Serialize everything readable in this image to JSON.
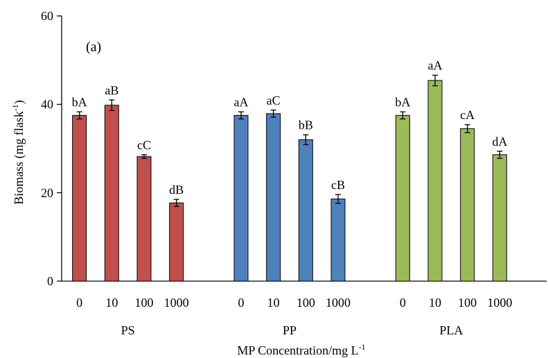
{
  "chart_data": {
    "type": "bar",
    "panel_label": "(a)",
    "xlabel": "MP Concentration/mg L",
    "xlabel_sup": "-1",
    "ylabel": "Biomass (mg flask",
    "ylabel_sup": "-1",
    "ylabel_end": ")",
    "ylim": [
      0,
      60
    ],
    "yticks": [
      0,
      20,
      40,
      60
    ],
    "grid": false,
    "groups": [
      {
        "name": "PS",
        "color": "#c0504d",
        "categories": [
          "0",
          "10",
          "100",
          "1000"
        ],
        "values": [
          37.5,
          39.8,
          28.2,
          17.7
        ],
        "errors": [
          0.8,
          1.2,
          0.4,
          0.8
        ],
        "labels": [
          "bA",
          "aB",
          "cC",
          "dB"
        ]
      },
      {
        "name": "PP",
        "color": "#4f81bd",
        "categories": [
          "0",
          "10",
          "100",
          "1000"
        ],
        "values": [
          37.5,
          37.9,
          32.0,
          18.6
        ],
        "errors": [
          0.8,
          0.8,
          1.1,
          1.0
        ],
        "labels": [
          "aA",
          "aC",
          "bB",
          "cB"
        ]
      },
      {
        "name": "PLA",
        "color": "#9bbb59",
        "categories": [
          "0",
          "10",
          "100",
          "1000"
        ],
        "values": [
          37.5,
          45.4,
          34.5,
          28.6
        ],
        "errors": [
          0.8,
          1.2,
          0.9,
          0.8
        ],
        "labels": [
          "bA",
          "aA",
          "cA",
          "dA"
        ]
      }
    ]
  }
}
